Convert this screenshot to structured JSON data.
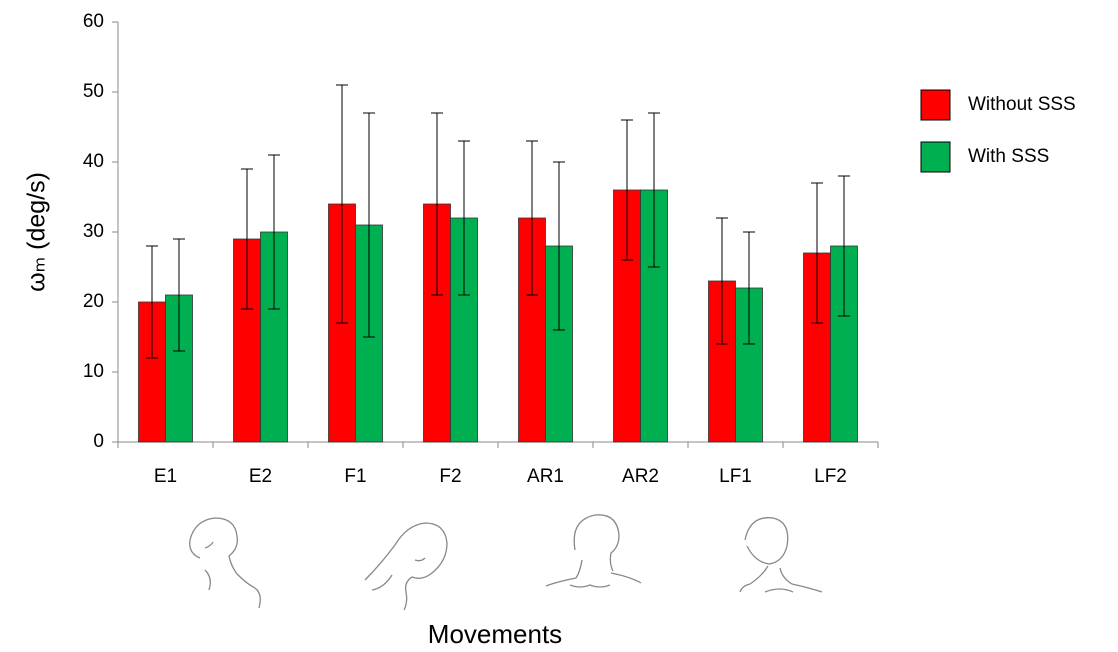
{
  "chart_data": {
    "type": "bar",
    "x_label": "Movements",
    "y_label": "ωₘ (deg/s)",
    "categories": [
      "E1",
      "E2",
      "F1",
      "F2",
      "AR1",
      "AR2",
      "LF1",
      "LF2"
    ],
    "series": [
      {
        "name": "Without SSS",
        "color": "#ff0000",
        "values": [
          20,
          29,
          34,
          34,
          32,
          36,
          23,
          27
        ],
        "errors": [
          8,
          10,
          17,
          13,
          11,
          10,
          9,
          10
        ]
      },
      {
        "name": "With SSS",
        "color": "#00b050",
        "values": [
          21,
          30,
          31,
          32,
          28,
          36,
          22,
          28
        ],
        "errors": [
          8,
          11,
          16,
          11,
          12,
          11,
          8,
          10
        ]
      }
    ],
    "ylim": [
      0,
      60
    ],
    "yticks": [
      0,
      10,
      20,
      30,
      40,
      50,
      60
    ],
    "grid": false
  }
}
